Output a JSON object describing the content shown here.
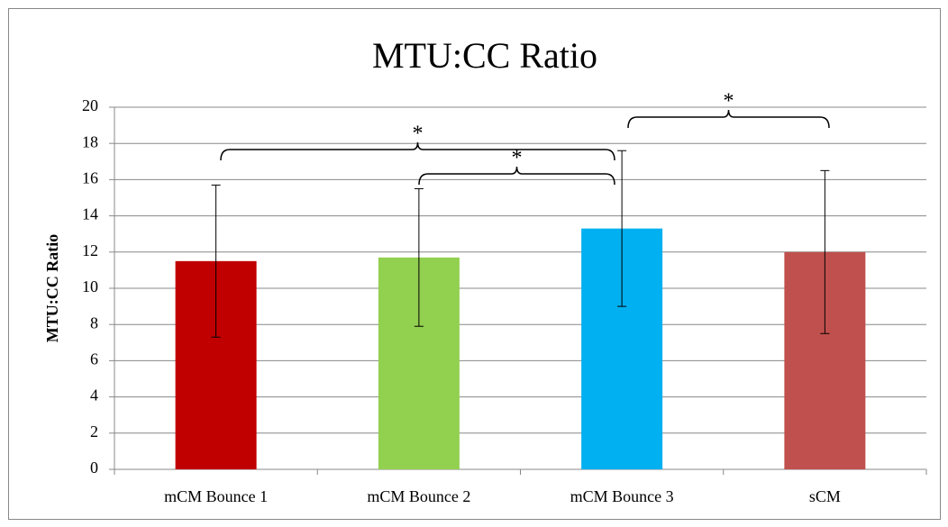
{
  "chart_data": {
    "type": "bar",
    "title": "MTU:CC Ratio",
    "y_label": "MTU:CC Ratio",
    "categories": [
      "mCM Bounce 1",
      "mCM Bounce 2",
      "mCM Bounce 3",
      "sCM"
    ],
    "values": [
      11.5,
      11.7,
      13.3,
      12.0
    ],
    "errors": [
      4.2,
      3.8,
      4.3,
      4.5
    ],
    "colors": [
      "#c00000",
      "#92d050",
      "#00b0f0",
      "#c0504d"
    ],
    "ylim": [
      0,
      20
    ],
    "yticks": [
      0,
      2,
      4,
      6,
      8,
      10,
      12,
      14,
      16,
      18,
      20
    ],
    "grid": true,
    "annotations": [
      "*",
      "*",
      "*"
    ]
  }
}
